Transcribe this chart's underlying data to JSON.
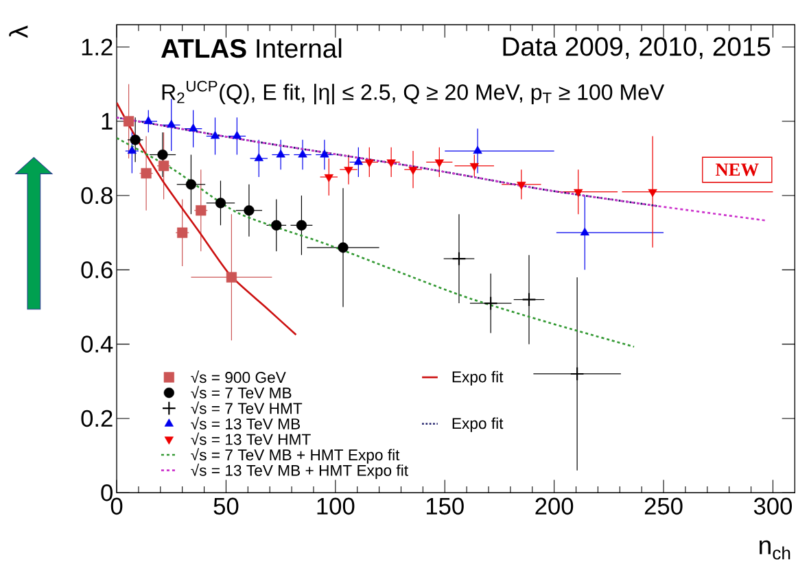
{
  "chart_data": {
    "type": "scatter",
    "title": "**ATLAS** Internal",
    "xlabel": "n$_{ch}$",
    "ylabel": "λ",
    "annotations": [
      "Data 2009, 2010, 2015",
      "R$_{2}$$^{UCP}$(Q), E fit, |η| ≤ 2.5, Q ≥ 20 MeV, p$_{T}$ ≥ 100 MeV",
      "NEW"
    ],
    "xlim": [
      0,
      310
    ],
    "ylim": [
      0,
      1.26
    ],
    "xticks": [
      0,
      50,
      100,
      150,
      200,
      250,
      300
    ],
    "yticks": [
      0,
      0.2,
      0.4,
      0.6,
      0.8,
      1,
      1.2
    ],
    "legend": "bottom left",
    "grid": false,
    "series": [
      {
        "name": "√s = 900 GeV",
        "marker": "square",
        "color": "#cc5555",
        "x": [
          5.5,
          13.5,
          21.5,
          30,
          38.5,
          52.5
        ],
        "values": [
          1.0,
          0.86,
          0.88,
          0.7,
          0.76,
          0.58
        ],
        "errors": [
          0.1,
          0.1,
          0.09,
          0.09,
          0.11,
          0.17
        ],
        "xerrors": [
          2.5,
          3,
          3,
          3,
          3,
          18.5
        ]
      },
      {
        "name": "√s = 7 TeV MB",
        "marker": "circle",
        "color": "#000000",
        "x": [
          8.5,
          21,
          34,
          47.5,
          60.5,
          73,
          84.5,
          103.5
        ],
        "values": [
          0.95,
          0.91,
          0.83,
          0.78,
          0.76,
          0.72,
          0.72,
          0.66
        ],
        "errors": [
          0.06,
          0.06,
          0.08,
          0.06,
          0.07,
          0.07,
          0.08,
          0.16
        ],
        "xerrors": [
          3.5,
          6,
          6.5,
          6.5,
          6,
          4.5,
          5,
          16.5
        ]
      },
      {
        "name": "√s = 7 TeV HMT",
        "marker": "cross",
        "color": "#000000",
        "x": [
          156.5,
          171,
          188.5,
          210.5
        ],
        "values": [
          0.63,
          0.51,
          0.52,
          0.32
        ],
        "errors": [
          0.12,
          0.08,
          0.12,
          0.26
        ],
        "xerrors": [
          7,
          9.5,
          7,
          20
        ]
      },
      {
        "name": "√s = 13 TeV MB",
        "marker": "triangle",
        "color": "#0000ee",
        "x": [
          7,
          14.5,
          25,
          35,
          45,
          55,
          65,
          75,
          85,
          95,
          110.5,
          165,
          214
        ],
        "values": [
          0.92,
          1.0,
          0.99,
          0.98,
          0.96,
          0.96,
          0.9,
          0.91,
          0.91,
          0.91,
          0.89,
          0.92,
          0.7
        ],
        "errors": [
          0.06,
          0.03,
          0.07,
          0.05,
          0.05,
          0.05,
          0.05,
          0.04,
          0.04,
          0.04,
          0.04,
          0.06,
          0.1
        ],
        "xerrors": [
          3,
          4,
          4,
          4,
          4,
          4,
          4,
          4,
          4,
          4,
          4,
          [
            150,
            200
          ],
          [
            201,
            250
          ]
        ]
      },
      {
        "name": "√s = 13 TeV HMT",
        "marker": "triangle-down",
        "color": "#ee0000",
        "x": [
          97,
          106,
          115.5,
          125.5,
          135.5,
          147.5,
          163.5,
          185,
          211,
          245
        ],
        "values": [
          0.85,
          0.87,
          0.89,
          0.89,
          0.87,
          0.89,
          0.88,
          0.83,
          0.81,
          0.81
        ],
        "errors": [
          0.05,
          0.04,
          0.04,
          0.04,
          0.05,
          0.04,
          0.03,
          0.04,
          0.06,
          0.15
        ],
        "xerrors": [
          4,
          4,
          4,
          4,
          4,
          6,
          9,
          9,
          [
            201,
            229
          ],
          [
            231,
            300
          ]
        ]
      },
      {
        "name": "Expo fit",
        "type": "line",
        "line_style": "solid",
        "color": "#cc1111",
        "x": [
          0,
          7,
          21,
          38,
          52,
          68,
          82
        ],
        "values": [
          1.05,
          0.975,
          0.84,
          0.7,
          0.585,
          0.5,
          0.425
        ]
      },
      {
        "name": "Expo fit",
        "type": "line",
        "line_style": "dotted",
        "color": "#1a1a66",
        "x": [
          0,
          55.5,
          95,
          135,
          164,
          197.5,
          247
        ],
        "values": [
          1.01,
          0.953,
          0.916,
          0.879,
          0.849,
          0.814,
          0.772
        ]
      },
      {
        "name": "√s = 7 TeV MB + HMT Expo fit",
        "type": "line",
        "line_style": "dashed",
        "color": "#339933",
        "x": [
          0,
          26,
          55.5,
          97,
          156.5,
          197.5,
          236.5
        ],
        "values": [
          0.955,
          0.87,
          0.753,
          0.667,
          0.533,
          0.458,
          0.393
        ]
      },
      {
        "name": "√s = 13 TeV MB + HMT Expo fit",
        "type": "line",
        "line_style": "dashed",
        "color": "#cc33cc",
        "x": [
          0,
          55.5,
          95,
          135,
          164,
          197.5,
          247,
          296.5
        ],
        "values": [
          1.01,
          0.953,
          0.916,
          0.879,
          0.849,
          0.814,
          0.772,
          0.733
        ]
      }
    ]
  }
}
